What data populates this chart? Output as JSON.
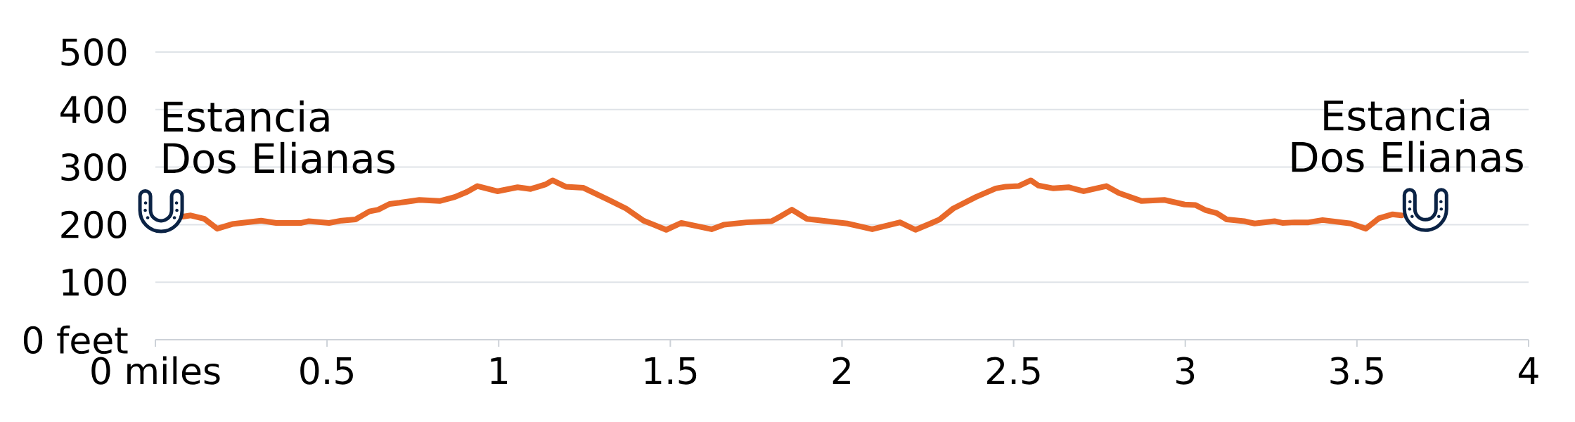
{
  "chart_data": {
    "type": "line",
    "series": [
      {
        "color": "#e8692a",
        "x": [
          0.08,
          0.103,
          0.143,
          0.18,
          0.224,
          0.308,
          0.352,
          0.425,
          0.447,
          0.506,
          0.542,
          0.583,
          0.623,
          0.649,
          0.682,
          0.711,
          0.769,
          0.828,
          0.872,
          0.908,
          0.938,
          0.996,
          1.055,
          1.093,
          1.137,
          1.157,
          1.195,
          1.247,
          1.32,
          1.371,
          1.422,
          1.451,
          1.488,
          1.532,
          1.62,
          1.656,
          1.722,
          1.795,
          1.817,
          1.854,
          1.898,
          2.015,
          2.059,
          2.088,
          2.169,
          2.214,
          2.258,
          2.284,
          2.324,
          2.39,
          2.448,
          2.477,
          2.514,
          2.55,
          2.572,
          2.616,
          2.66,
          2.704,
          2.77,
          2.807,
          2.873,
          2.939,
          2.998,
          3.03,
          3.06,
          3.092,
          3.121,
          3.172,
          3.202,
          3.26,
          3.283,
          3.318,
          3.359,
          3.4,
          3.482,
          3.526,
          3.564,
          3.604,
          3.63
        ],
        "values": [
          214,
          216,
          210,
          193,
          201,
          207,
          203,
          203,
          206,
          203,
          207,
          209,
          223,
          226,
          236,
          238,
          243,
          241,
          248,
          257,
          267,
          258,
          265,
          262,
          270,
          277,
          266,
          264,
          243,
          228,
          207,
          200,
          191,
          203,
          192,
          200,
          204,
          206,
          213,
          226,
          210,
          202,
          196,
          192,
          204,
          191,
          202,
          209,
          228,
          248,
          263,
          266,
          267,
          277,
          268,
          263,
          265,
          258,
          267,
          255,
          241,
          243,
          235,
          234,
          225,
          220,
          209,
          206,
          202,
          206,
          203,
          204,
          204,
          208,
          202,
          193,
          211,
          218,
          216
        ]
      }
    ],
    "xlim": [
      0,
      4
    ],
    "ylim": [
      0,
      500
    ],
    "xticks": [
      {
        "value": 0,
        "label": "0 miles"
      },
      0.5,
      1,
      1.5,
      2,
      2.5,
      3,
      3.5,
      4
    ],
    "yticks": [
      {
        "value": 0,
        "label": "0 feet"
      },
      100,
      200,
      300,
      400,
      500
    ],
    "grid": "y",
    "annotations": [
      "Estancia Dos Elianas",
      "Estancia Dos Elianas"
    ]
  }
}
